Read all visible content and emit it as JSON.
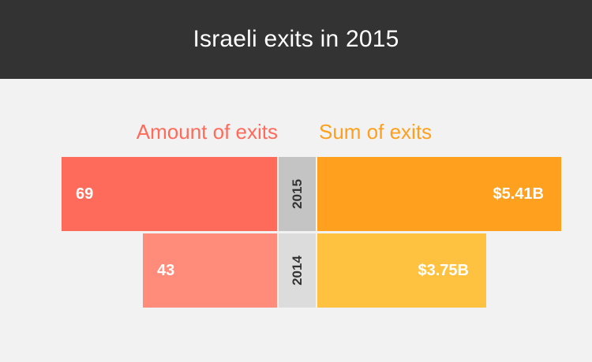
{
  "header": {
    "title": "Israeli exits in 2015"
  },
  "columns": {
    "left_title": "Amount of exits",
    "right_title": "Sum of exits"
  },
  "colors": {
    "header_bg": "#333333",
    "background": "#f2f2f2",
    "left_title": "#ff6b5b",
    "right_title": "#ff9f1c"
  },
  "chart_data": {
    "type": "bar",
    "title": "Israeli exits in 2015",
    "categories": [
      "2015",
      "2014"
    ],
    "series": [
      {
        "name": "Amount of exits",
        "values": [
          69,
          43
        ],
        "labels": [
          "69",
          "43"
        ],
        "colors": [
          "#ff6b5b",
          "#ff8b7b"
        ]
      },
      {
        "name": "Sum of exits",
        "values": [
          5.41,
          3.75
        ],
        "labels": [
          "$5.41B",
          "$3.75B"
        ],
        "colors": [
          "#ffa01e",
          "#ffc240"
        ]
      }
    ],
    "year_cell_colors": [
      "#c4c4c4",
      "#dcdcdc"
    ]
  }
}
